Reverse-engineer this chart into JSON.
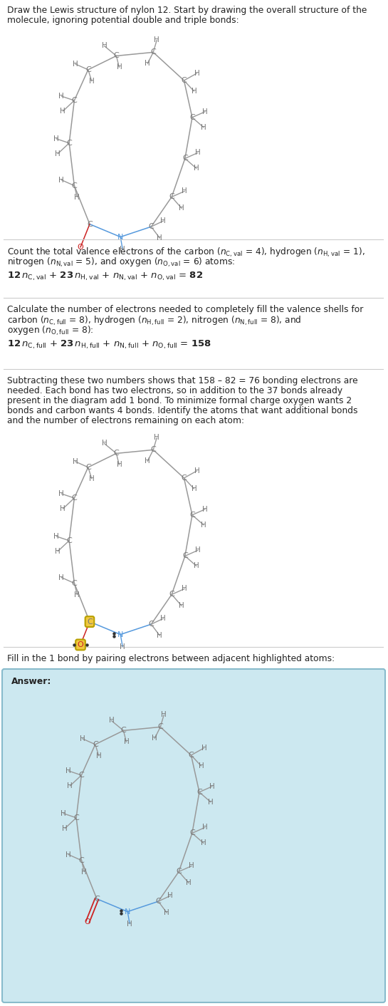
{
  "bg_color": "#ffffff",
  "C_color": "#777777",
  "N_color": "#5599dd",
  "O_color": "#cc2222",
  "bond_color": "#999999",
  "N_bond_color": "#5599dd",
  "highlight_color": "#f0c840",
  "answer_box_color": "#cce8f0",
  "answer_box_edge": "#88bbcc",
  "sep_color": "#cccccc",
  "text_color": "#222222",
  "title": "Draw the Lewis structure of nylon 12. Start by drawing the overall structure of the\nmolecule, ignoring potential double and triple bonds:",
  "s2_line1": "Count the total valence electrons of the carbon (",
  "s3_line1": "Calculate the number of electrons needed to completely fill the valence shells for",
  "s4_line1": "Subtracting these two numbers shows that 158 – 82 = 76 bonding electrons are",
  "s4_line2": "needed. Each bond has two electrons, so in addition to the 37 bonds already",
  "s4_line3": "present in the diagram add 1 bond. To minimize formal charge oxygen wants 2",
  "s4_line4": "bonds and carbon wants 4 bonds. Identify the atoms that want additional bonds",
  "s4_line5": "and the number of electrons remaining on each atom:",
  "s5_line1": "Fill in the 1 bond by pairing electrons between adjacent highlighted atoms:",
  "answer_label": "Answer:"
}
